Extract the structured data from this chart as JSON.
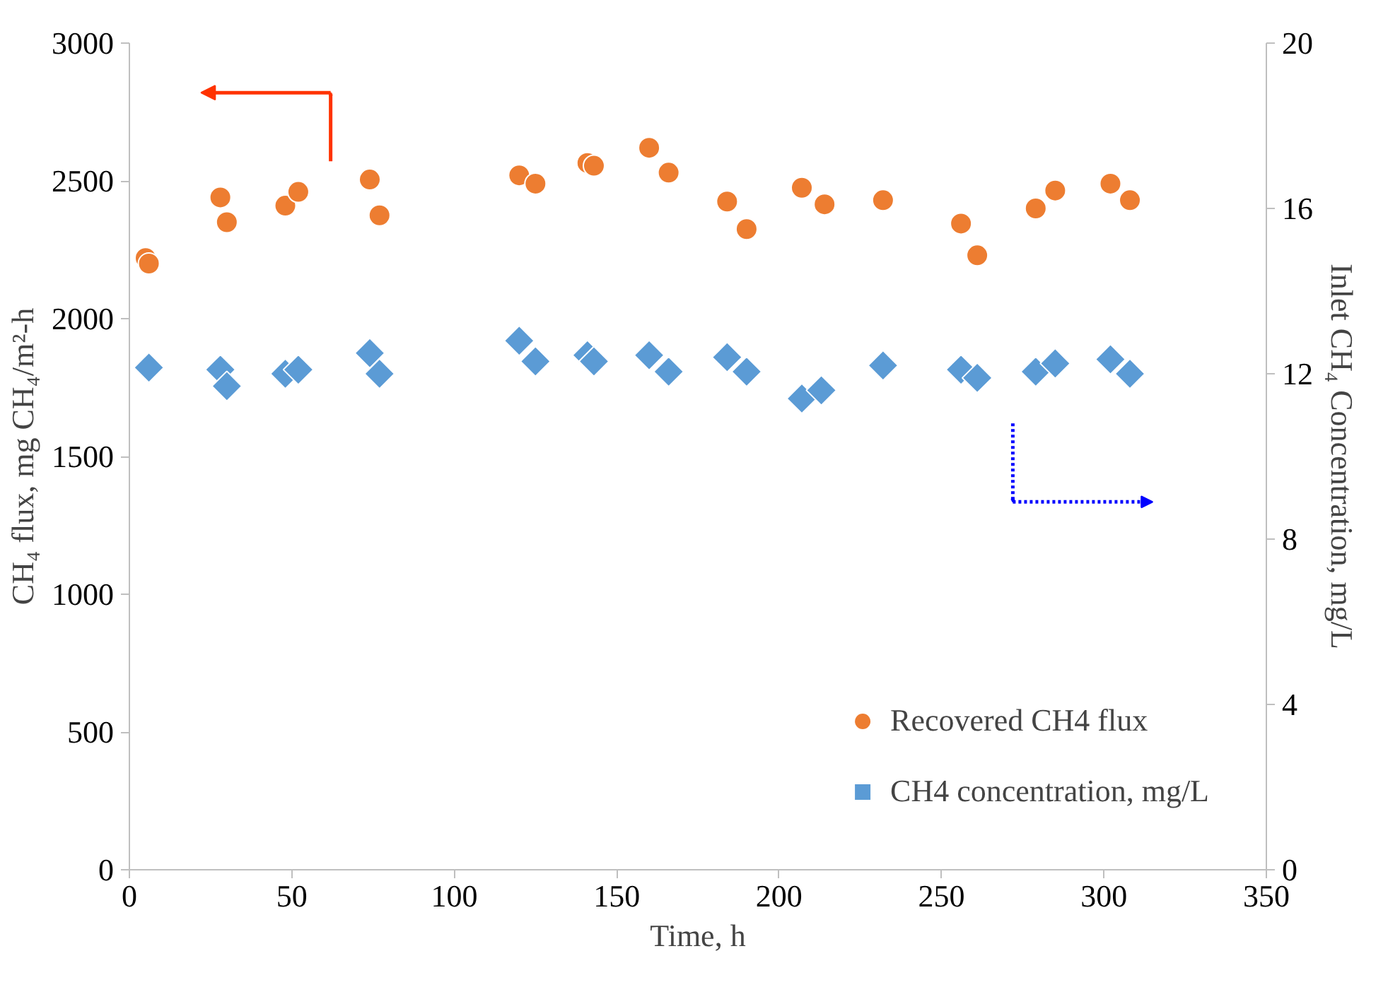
{
  "chart_data": {
    "type": "scatter",
    "xlabel": "Time, h",
    "ylabel": "CH₄ flux, mg CH₄/m²-h",
    "y2label": "Inlet CH₄ Concentration, mg/L",
    "xlim": [
      0,
      350
    ],
    "xticks": [
      0,
      50,
      100,
      150,
      200,
      250,
      300,
      350
    ],
    "ylim": [
      0,
      3000
    ],
    "yticks": [
      0,
      500,
      1000,
      1500,
      2000,
      2500,
      3000
    ],
    "y2lim": [
      0,
      20
    ],
    "y2ticks": [
      0,
      4,
      8,
      12,
      16,
      20
    ],
    "grid": false,
    "legend": "bottom right",
    "series": [
      {
        "name": "Recovered CH4 flux",
        "color": "#ed7d31",
        "marker": "circle",
        "x": [
          5,
          6,
          28,
          30,
          48,
          52,
          74,
          77,
          120,
          125,
          141,
          143,
          160,
          166,
          184,
          190,
          207,
          214,
          232,
          256,
          261,
          279,
          285,
          302,
          308
        ],
        "values": [
          2220,
          2200,
          2440,
          2350,
          2410,
          2460,
          2505,
          2375,
          2520,
          2490,
          2565,
          2555,
          2620,
          2530,
          2425,
          2325,
          2475,
          2415,
          2430,
          2345,
          2230,
          2400,
          2465,
          2490,
          2430
        ]
      },
      {
        "name": "CH4 concentration, mg/L",
        "color": "#5b9bd5",
        "marker": "diamond",
        "axis": "y2",
        "x": [
          6,
          28,
          30,
          48,
          52,
          74,
          77,
          120,
          125,
          141,
          143,
          160,
          166,
          184,
          190,
          207,
          213,
          232,
          256,
          261,
          279,
          285,
          302,
          308
        ],
        "values": [
          12.15,
          12.1,
          11.7,
          12.0,
          12.1,
          12.5,
          12.0,
          12.8,
          12.3,
          12.45,
          12.3,
          12.45,
          12.05,
          12.4,
          12.05,
          11.4,
          11.6,
          12.2,
          12.1,
          11.9,
          12.05,
          12.25,
          12.35,
          12.0
        ]
      }
    ]
  }
}
